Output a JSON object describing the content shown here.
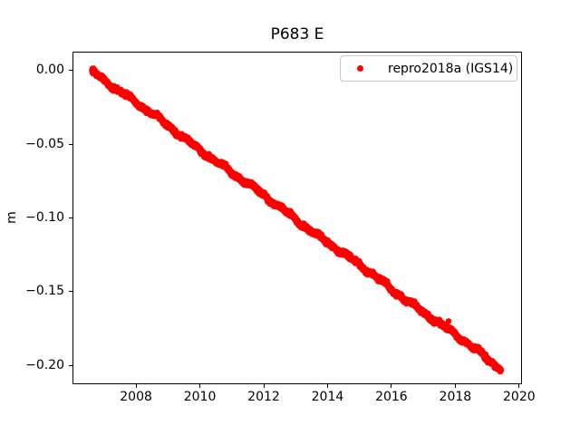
{
  "chart_data": {
    "type": "scatter",
    "title": "P683 E",
    "xlabel": "",
    "ylabel": "m",
    "xlim": [
      2006.01,
      2020.09
    ],
    "ylim": [
      -0.2128,
      0.0129
    ],
    "xticks": [
      2008,
      2010,
      2012,
      2014,
      2016,
      2018,
      2020
    ],
    "xtick_labels": [
      "2008",
      "2010",
      "2012",
      "2014",
      "2016",
      "2018",
      "2020"
    ],
    "yticks": [
      0.0,
      -0.05,
      -0.1,
      -0.15,
      -0.2
    ],
    "ytick_labels": [
      "0.00",
      "−0.05",
      "−0.10",
      "−0.15",
      "−0.20"
    ],
    "grid": false,
    "background": "#ffffff",
    "axis_color": "#000000",
    "legend": {
      "location": "upper right",
      "entries": [
        {
          "label": "repro2018a (IGS14)",
          "marker": "dot",
          "color": "#ff0000"
        }
      ]
    },
    "series": [
      {
        "name": "repro2018a (IGS14)",
        "color": "#ff0000",
        "marker": "dot",
        "marker_diameter_px": 6.5,
        "x_start": 2006.62,
        "x_end": 2019.43,
        "y_start_m": 0.0,
        "y_end_m": -0.202,
        "slope_m_per_yr": -0.01577,
        "sampling_interval_days": 1,
        "noise_std_m": 0.0007,
        "wiggle": [
          {
            "amp": 0.0009,
            "period_yr": 1.0,
            "phase": 0.9
          },
          {
            "amp": 0.0006,
            "period_yr": 0.42,
            "phase": 2.1
          },
          {
            "amp": 0.0005,
            "period_yr": 3.2,
            "phase": 4.0
          }
        ],
        "seed": 42,
        "outliers": [
          [
            2017.79,
            -0.17
          ]
        ]
      }
    ]
  }
}
